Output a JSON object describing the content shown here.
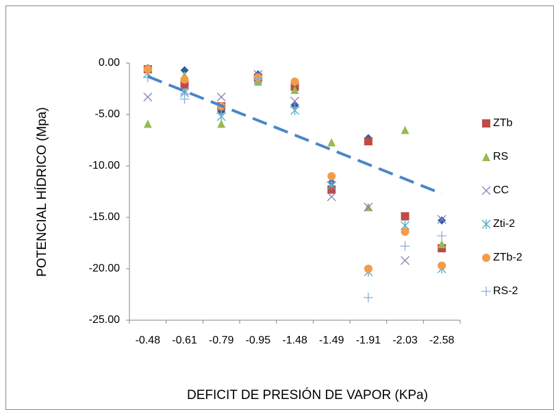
{
  "chart_data": {
    "type": "scatter",
    "y_label": "POTENCIAL HÍDRICO (Mpa)",
    "x_label": "DEFICIT DE PRESIÓN DE VAPOR (KPa)",
    "categories": [
      "-0.48",
      "-0.61",
      "-0.79",
      "-0.95",
      "-1.48",
      "-1.49",
      "-1.91",
      "-2.03",
      "-2.58"
    ],
    "ylim": [
      -25,
      0
    ],
    "yticks": [
      {
        "value": 0,
        "label": "0.00"
      },
      {
        "value": -5,
        "label": "-5.00"
      },
      {
        "value": -10,
        "label": "-10.00"
      },
      {
        "value": -15,
        "label": "-15.00"
      },
      {
        "value": -20,
        "label": "-20.00"
      },
      {
        "value": -25,
        "label": "-25.00"
      }
    ],
    "legend": "right",
    "series": [
      {
        "name": null,
        "marker": "diamond",
        "color": "#2e5e9e",
        "values": [
          -0.5,
          -0.7,
          -4.7,
          -1.1,
          -4.1,
          -11.6,
          -7.3,
          -14.9,
          -15.3
        ]
      },
      {
        "name": "ZTb",
        "marker": "square",
        "color": "#be4b48",
        "values": [
          -0.6,
          -2.1,
          -4.2,
          -1.4,
          -2.3,
          -12.3,
          -7.6,
          -14.9,
          -18.0
        ]
      },
      {
        "name": "RS",
        "marker": "triangle",
        "color": "#98b954",
        "values": [
          -5.9,
          -1.2,
          -5.9,
          -1.8,
          -2.6,
          -7.7,
          -14.0,
          -6.5,
          -17.6
        ]
      },
      {
        "name": "CC",
        "marker": "x",
        "color": "#8a7fb8",
        "values": [
          -3.3,
          -2.7,
          -3.3,
          -1.1,
          -3.7,
          -13.0,
          -14.0,
          -19.2,
          -15.2
        ]
      },
      {
        "name": "Zti-2",
        "marker": "star",
        "color": "#4bacc6",
        "values": [
          -1.0,
          -2.9,
          -5.2,
          -1.6,
          -4.6,
          -11.9,
          -20.3,
          -15.8,
          -20.0
        ]
      },
      {
        "name": "ZTb-2",
        "marker": "circle",
        "color": "#f39c4a",
        "values": [
          -0.6,
          -1.6,
          -4.2,
          -1.4,
          -1.8,
          -11.0,
          -20.0,
          -16.4,
          -19.7
        ]
      },
      {
        "name": "RS-2",
        "marker": "plus",
        "color": "#8fa9d6",
        "values": [
          -1.4,
          -3.5,
          -4.9,
          -1.5,
          -4.3,
          -11.6,
          -22.8,
          -17.8,
          -16.8
        ]
      }
    ],
    "trendline": {
      "color": "#4a86c8",
      "start": -1.3,
      "end": -12.7
    }
  }
}
